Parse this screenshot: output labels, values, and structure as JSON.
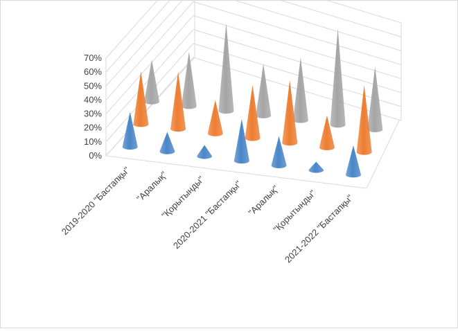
{
  "chart_data": {
    "type": "3d-cone",
    "title": "",
    "xlabel": "",
    "ylabel": "",
    "ylim": [
      0,
      0.7
    ],
    "yticks": [
      "0%",
      "10%",
      "20%",
      "30%",
      "40%",
      "50%",
      "60%",
      "70%"
    ],
    "categories": [
      "2019-2020   \"Бастапқы\"",
      "\"Аралық\"",
      "\"Қорытынды\"",
      "2020-2021  \"Бастапқы\"",
      "\"Аралық\"",
      "\"Қорытынды\"",
      "2021-2022  \"Бастапқы\""
    ],
    "grid": true,
    "legend": "none",
    "series": [
      {
        "color": "#4a86c8",
        "values": [
          0.25,
          0.14,
          0.08,
          0.3,
          0.21,
          0.06,
          0.21
        ]
      },
      {
        "color": "#ed7d31",
        "values": [
          0.38,
          0.41,
          0.24,
          0.38,
          0.45,
          0.23,
          0.48
        ]
      },
      {
        "color": "#a5a5a5",
        "values": [
          0.3,
          0.39,
          0.63,
          0.37,
          0.45,
          0.69,
          0.45
        ]
      }
    ]
  }
}
